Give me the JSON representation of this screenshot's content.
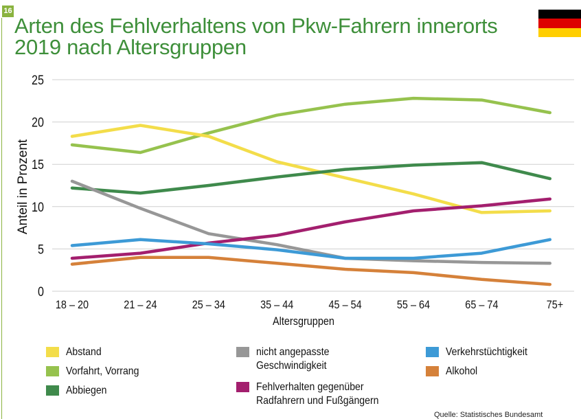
{
  "figure_number": "16",
  "title_lines": [
    "Arten des Fehlverhaltens von Pkw-Fahrern innerorts",
    "2019 nach Altersgruppen"
  ],
  "flag": {
    "name": "germany-flag",
    "colors": [
      "#000000",
      "#dd0000",
      "#ffce00"
    ]
  },
  "source": "Quelle: Statistisches Bundesamt",
  "chart_data": {
    "type": "line",
    "title": "Arten des Fehlverhaltens von Pkw-Fahrern innerorts 2019 nach Altersgruppen",
    "xlabel": "Altersgruppen",
    "ylabel": "Anteil in Prozent",
    "ylim": [
      0,
      25
    ],
    "yticks": [
      "0",
      "5",
      "10",
      "15",
      "20",
      "25"
    ],
    "grid": true,
    "categories": [
      "18 – 20",
      "21 – 24",
      "25 – 34",
      "35 – 44",
      "45 – 54",
      "55 – 64",
      "65 – 74",
      "75+"
    ],
    "series": [
      {
        "name": "Abstand",
        "color": "#f3dd4a",
        "values": [
          18.3,
          19.6,
          18.3,
          15.3,
          13.4,
          11.5,
          9.3,
          9.5
        ]
      },
      {
        "name": "Vorfahrt, Vorrang",
        "color": "#96c24e",
        "values": [
          17.3,
          16.4,
          18.7,
          20.8,
          22.1,
          22.8,
          22.6,
          21.1
        ]
      },
      {
        "name": "Abbiegen",
        "color": "#3f8a4c",
        "values": [
          12.2,
          11.6,
          12.5,
          13.5,
          14.4,
          14.9,
          15.2,
          13.3
        ]
      },
      {
        "name": "nicht angepasste\nGeschwindigkeit",
        "color": "#979797",
        "values": [
          13.0,
          9.8,
          6.8,
          5.5,
          3.9,
          3.6,
          3.4,
          3.3
        ]
      },
      {
        "name": "Fehlverhalten gegenüber\nRadfahrern und Fußgängern",
        "color": "#a31f6e",
        "values": [
          3.9,
          4.5,
          5.7,
          6.6,
          8.2,
          9.5,
          10.1,
          10.9
        ]
      },
      {
        "name": "Verkehrstüchtigkeit",
        "color": "#3d9ad6",
        "values": [
          5.4,
          6.1,
          5.6,
          4.9,
          3.9,
          3.9,
          4.5,
          6.1
        ]
      },
      {
        "name": "Alkohol",
        "color": "#d5813a",
        "values": [
          3.2,
          4.0,
          4.0,
          3.3,
          2.6,
          2.2,
          1.4,
          0.8
        ]
      }
    ]
  }
}
